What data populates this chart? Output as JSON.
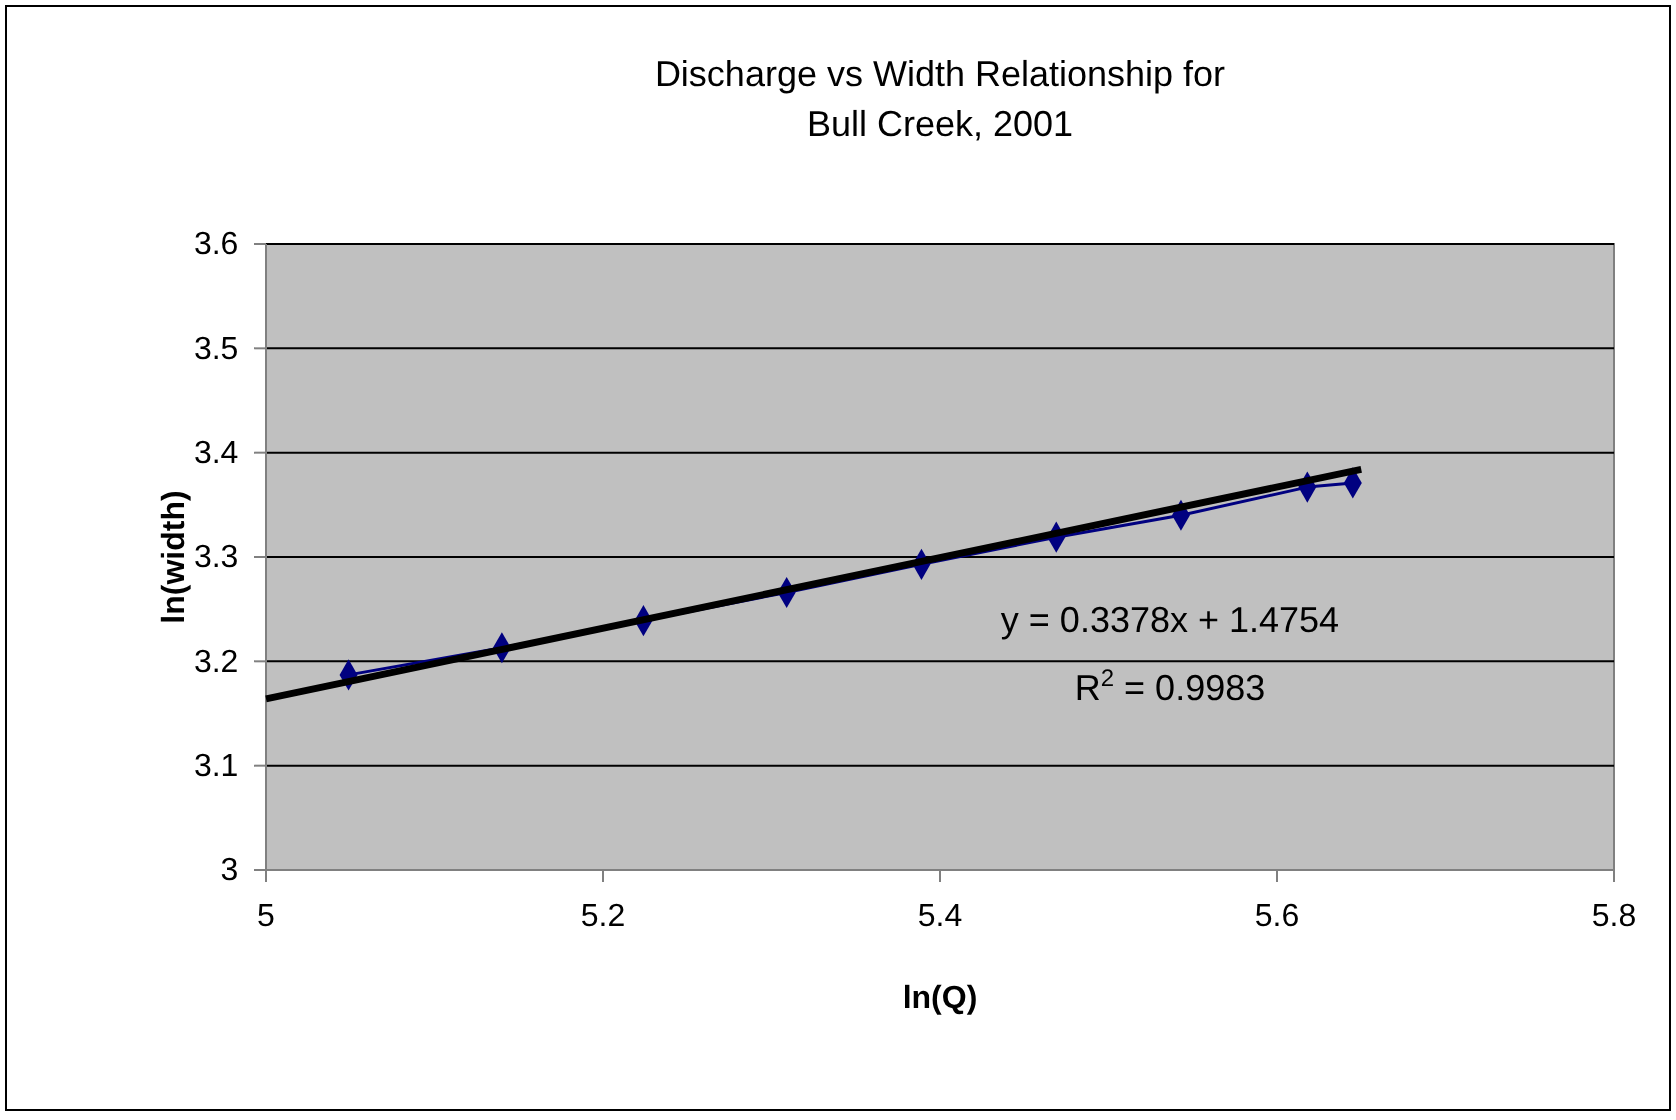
{
  "chart_data": {
    "type": "line",
    "title": "Discharge vs Width Relationship for\nBull Creek, 2001",
    "xlabel": "ln(Q)",
    "ylabel": "ln(width)",
    "series": [
      {
        "color": "#000080",
        "marker": "diamond",
        "x": [
          5.049,
          5.14,
          5.224,
          5.309,
          5.389,
          5.469,
          5.543,
          5.618,
          5.645
        ],
        "values": [
          3.187,
          3.213,
          3.239,
          3.266,
          3.293,
          3.319,
          3.34,
          3.367,
          3.371
        ]
      },
      {
        "color": "#000000",
        "marker": "none",
        "x": [
          5,
          5.65
        ],
        "values": [
          3.164,
          3.384
        ]
      }
    ],
    "annotations": [
      "y = 0.3378x + 1.4754",
      "R$^{2}$ = 0.9983"
    ],
    "xlim": [
      5,
      5.8
    ],
    "xticks": [
      5,
      5.2,
      5.4,
      5.6,
      5.8
    ],
    "ylim": [
      3,
      3.6
    ],
    "yticks": [
      3,
      3.1,
      3.2,
      3.3,
      3.4,
      3.5,
      3.6
    ],
    "grid": "y"
  }
}
